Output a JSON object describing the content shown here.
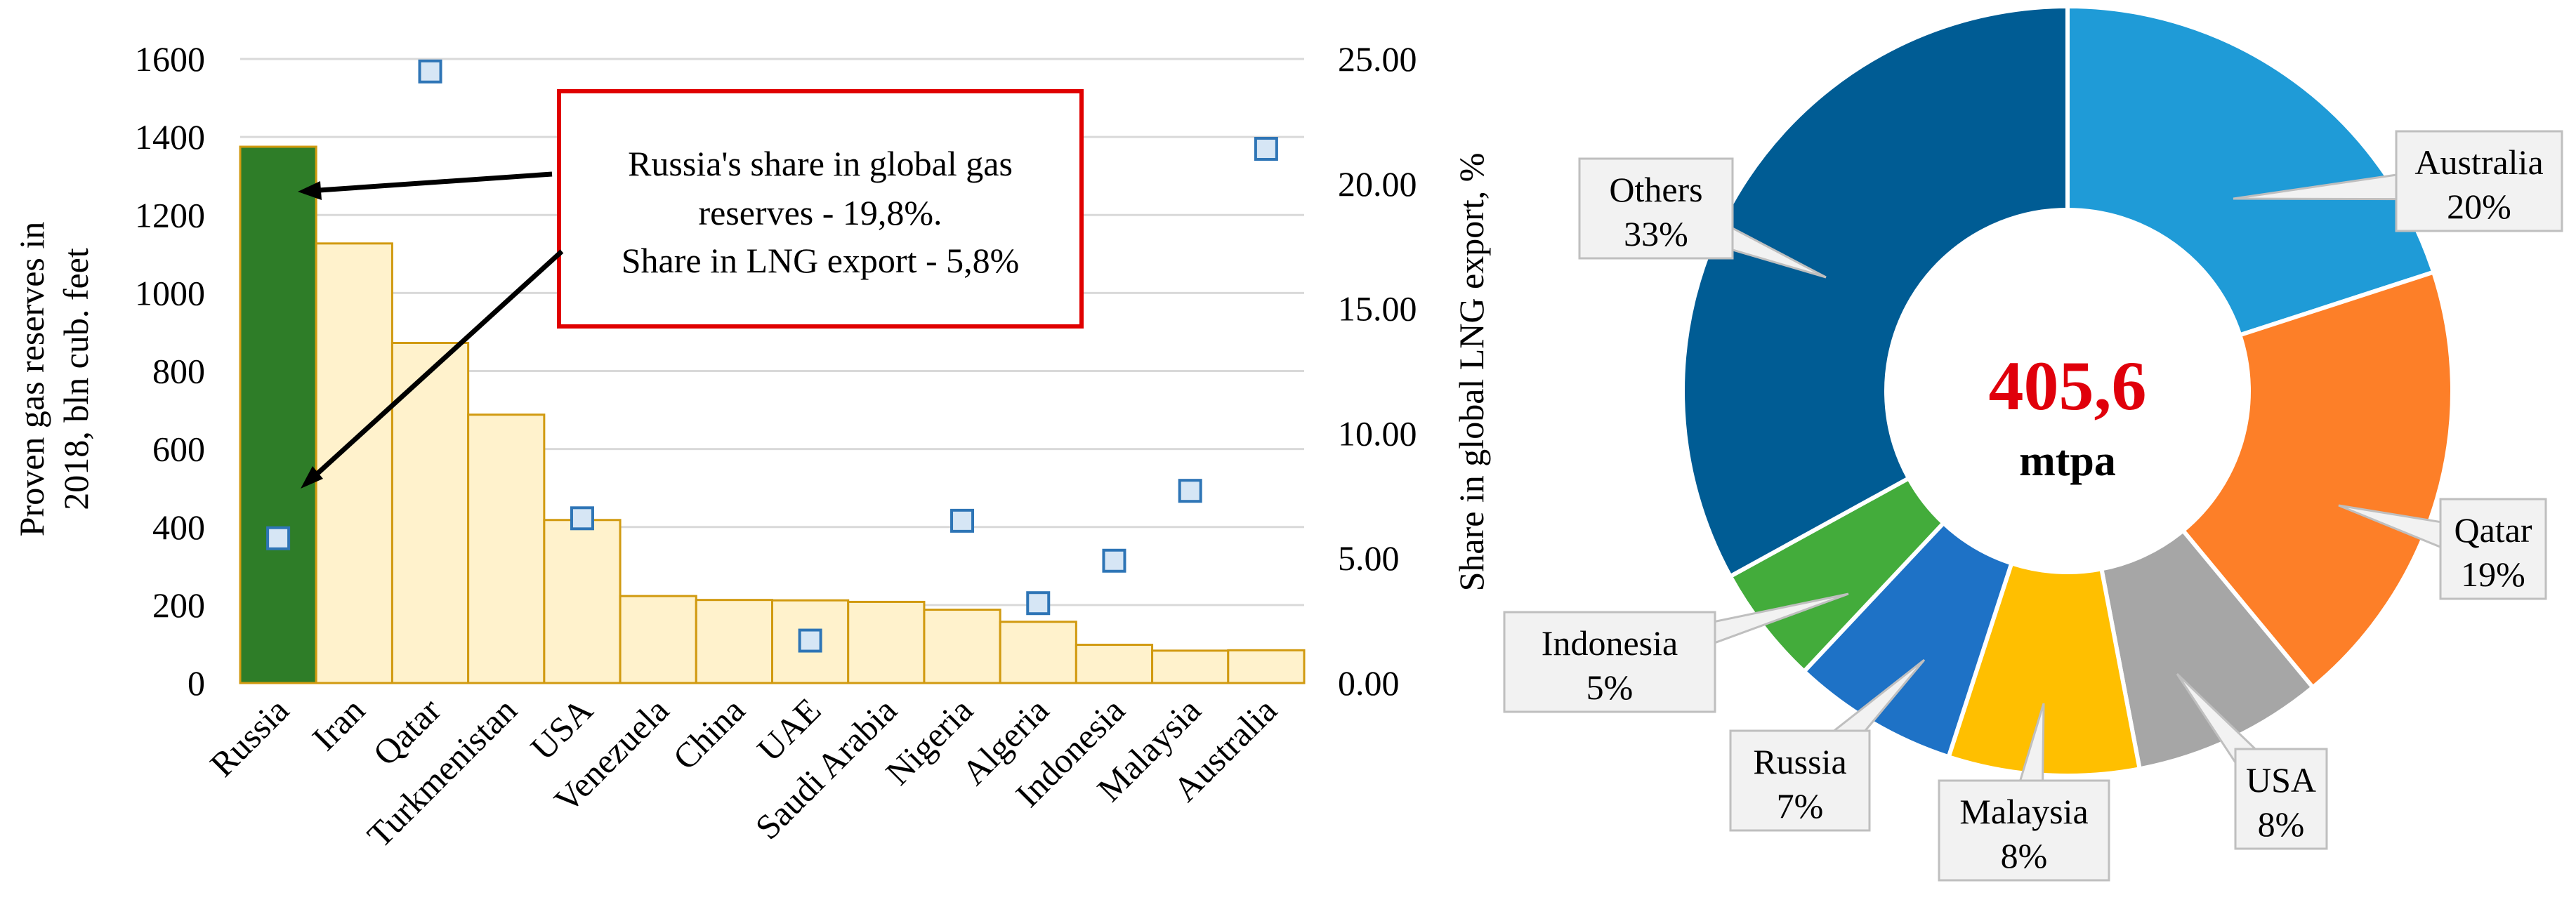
{
  "chart_data": [
    {
      "type": "bar",
      "categories": [
        "Russia",
        "Iran",
        "Qatar",
        "Turkmenistan",
        "USA",
        "Venezuela",
        "China",
        "UAE",
        "Saudi Arabia",
        "Nigeria",
        "Algeria",
        "Indonesia",
        "Malaysia",
        "Australia"
      ],
      "series": [
        {
          "values": [
            1375,
            1127,
            872,
            688,
            418,
            223,
            213,
            212,
            208,
            188,
            157,
            98,
            83,
            84
          ],
          "color": "#fff2cc",
          "highlight_color": "#2e7d28",
          "axis": "left"
        },
        {
          "values": [
            5.8,
            null,
            24.5,
            null,
            6.6,
            null,
            null,
            1.7,
            null,
            6.5,
            3.2,
            4.9,
            7.7,
            21.4
          ],
          "type": "scatter",
          "marker": "square",
          "color": "#2e75b6",
          "axis": "right"
        }
      ],
      "xlabel": "",
      "ylabel": "Proven gas reserves in 2018, bln cub. feet",
      "ylabel_lines": [
        "Proven gas reserves in",
        "2018, bln cub. feet"
      ],
      "y2label": "Share in global LNG export, %",
      "ylim": [
        0,
        1600
      ],
      "y2lim": [
        0,
        25
      ],
      "yticks": [
        "0",
        "200",
        "400",
        "600",
        "800",
        "1000",
        "1200",
        "1400",
        "1600"
      ],
      "y2ticks": [
        "0.00",
        "5.00",
        "10.00",
        "15.00",
        "20.00",
        "25.00"
      ],
      "grid": true,
      "annotation": {
        "lines": [
          "Russia's share in global gas",
          "reserves - 19,8%.",
          "Share in LNG export - 5,8%"
        ],
        "border_color": "#e00000"
      }
    },
    {
      "type": "pie",
      "variant": "donut",
      "center_value": "405,6",
      "center_unit": "mtpa",
      "slices": [
        {
          "label": "Australia",
          "pct_label": "20%",
          "value": 20,
          "color": "#1f9bd7"
        },
        {
          "label": "Qatar",
          "pct_label": "19%",
          "value": 19,
          "color": "#fd7f28"
        },
        {
          "label": "USA",
          "pct_label": "8%",
          "value": 8,
          "color": "#a6a6a6"
        },
        {
          "label": "Malaysia",
          "pct_label": "8%",
          "value": 8,
          "color": "#ffbf00"
        },
        {
          "label": "Russia",
          "pct_label": "7%",
          "value": 7,
          "color": "#1e72c6"
        },
        {
          "label": "Indonesia",
          "pct_label": "5%",
          "value": 5,
          "color": "#43ac3b"
        },
        {
          "label": "Others",
          "pct_label": "33%",
          "value": 33,
          "color": "#005c94"
        }
      ]
    }
  ]
}
